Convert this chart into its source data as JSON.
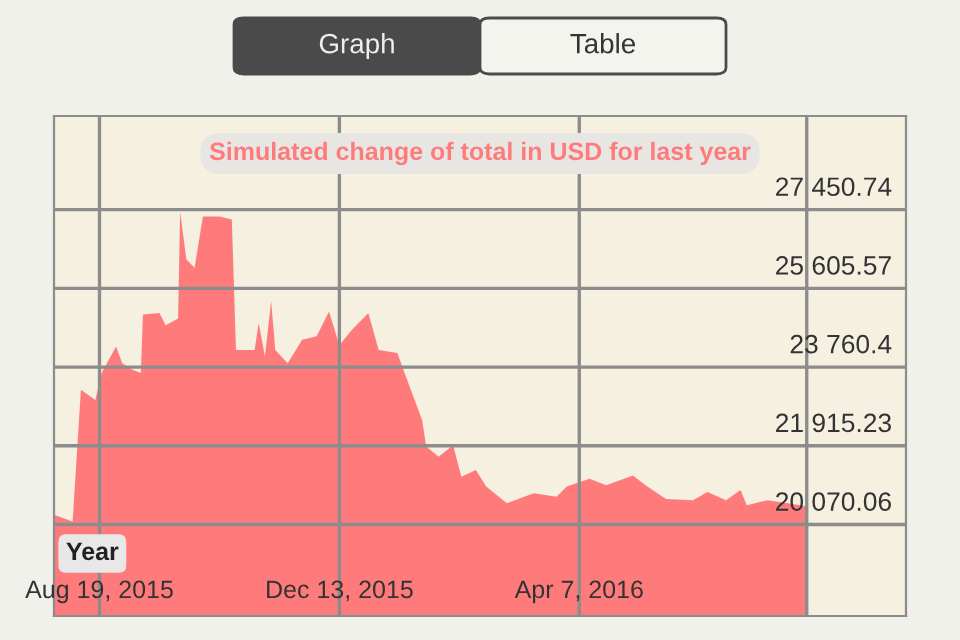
{
  "chart_data": {
    "type": "area",
    "title": "Simulated change of total in USD for last year",
    "x": [
      "2015-07-28",
      "2015-08-06",
      "2015-08-10",
      "2015-08-17",
      "2015-08-20",
      "2015-08-27",
      "2015-08-30",
      "2015-09-04",
      "2015-09-08",
      "2015-09-09",
      "2015-09-17",
      "2015-09-20",
      "2015-09-26",
      "2015-09-27",
      "2015-09-30",
      "2015-10-04",
      "2015-10-08",
      "2015-10-16",
      "2015-10-22",
      "2015-10-24",
      "2015-11-02",
      "2015-11-04",
      "2015-11-07",
      "2015-11-10",
      "2015-11-12",
      "2015-11-18",
      "2015-11-25",
      "2015-12-02",
      "2015-12-08",
      "2015-12-13",
      "2015-12-19",
      "2015-12-27",
      "2016-01-01",
      "2016-01-10",
      "2016-01-16",
      "2016-01-22",
      "2016-01-24",
      "2016-01-30",
      "2016-02-06",
      "2016-02-10",
      "2016-02-17",
      "2016-02-22",
      "2016-03-03",
      "2016-03-16",
      "2016-03-27",
      "2016-04-01",
      "2016-04-12",
      "2016-04-20",
      "2016-05-03",
      "2016-05-09",
      "2016-05-19",
      "2016-06-01",
      "2016-06-08",
      "2016-06-17",
      "2016-06-24",
      "2016-06-27",
      "2016-07-07",
      "2016-07-17",
      "2016-07-26"
    ],
    "series": [
      {
        "color": "#ff7b7b",
        "values": [
          20300,
          20140,
          23230,
          22990,
          23620,
          24240,
          23850,
          23700,
          23620,
          24990,
          25030,
          24740,
          24900,
          27400,
          26280,
          26090,
          27290,
          27290,
          27220,
          24160,
          24160,
          24790,
          24010,
          25310,
          24160,
          23850,
          24400,
          24480,
          25060,
          24270,
          24630,
          25030,
          24160,
          24090,
          23300,
          22520,
          21900,
          21660,
          21930,
          21190,
          21350,
          20960,
          20570,
          20800,
          20720,
          20960,
          21140,
          20990,
          21220,
          20990,
          20670,
          20640,
          20830,
          20640,
          20880,
          20520,
          20640,
          20570,
          20490
        ]
      }
    ],
    "xlim": [
      "2015-07-28",
      "2016-09-12"
    ],
    "xticks": [
      {
        "value": "2015-08-19",
        "label": "Aug 19, 2015"
      },
      {
        "value": "2015-12-13",
        "label": "Dec 13, 2015"
      },
      {
        "value": "2016-04-07",
        "label": "Apr 7, 2016"
      },
      {
        "value": "2016-07-26",
        "label": null
      }
    ],
    "ylim": [
      17925,
      29645
    ],
    "yticks": [
      {
        "value": 20070.06,
        "label": "20 070.06"
      },
      {
        "value": 21915.23,
        "label": "21 915.23"
      },
      {
        "value": 23760.4,
        "label": "23 760.4"
      },
      {
        "value": 25605.57,
        "label": "25 605.57"
      },
      {
        "value": 27450.74,
        "label": "27 450.74"
      }
    ],
    "grid": true,
    "annotations": [
      "Year",
      "Graph",
      "Table"
    ]
  }
}
